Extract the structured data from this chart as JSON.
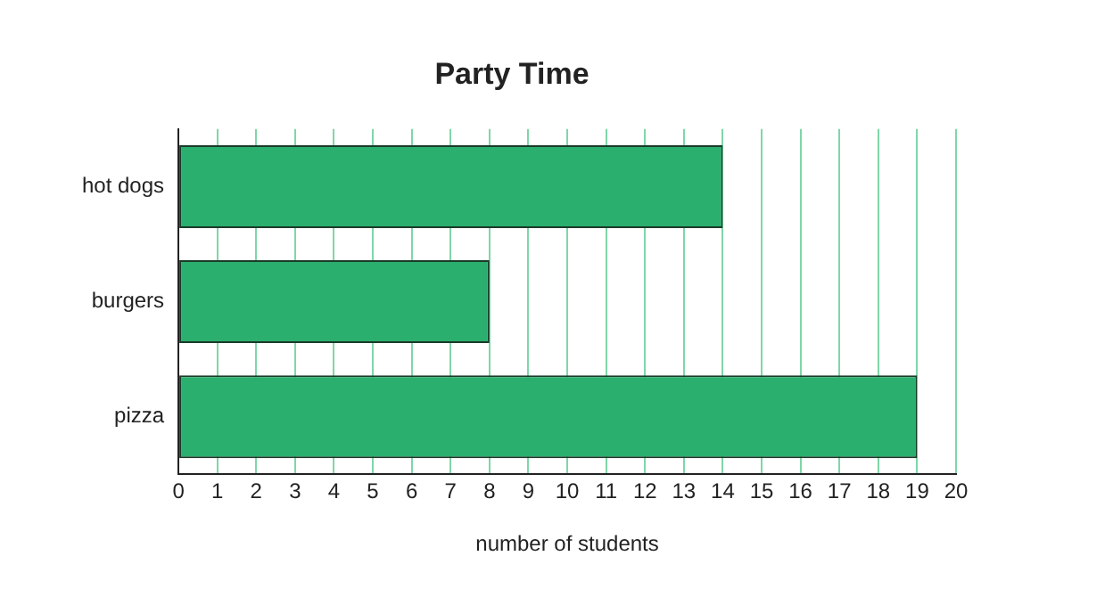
{
  "chart_data": {
    "type": "bar",
    "title": "Party Time",
    "orientation": "horizontal",
    "categories": [
      "hot dogs",
      "burgers",
      "pizza"
    ],
    "values": [
      14,
      8,
      19
    ],
    "color": "#2aaf6e",
    "xlabel": "number of students",
    "xlim": [
      0,
      20
    ],
    "xticks": [
      0,
      1,
      2,
      3,
      4,
      5,
      6,
      7,
      8,
      9,
      10,
      11,
      12,
      13,
      14,
      15,
      16,
      17,
      18,
      19,
      20
    ],
    "grid": "x"
  }
}
